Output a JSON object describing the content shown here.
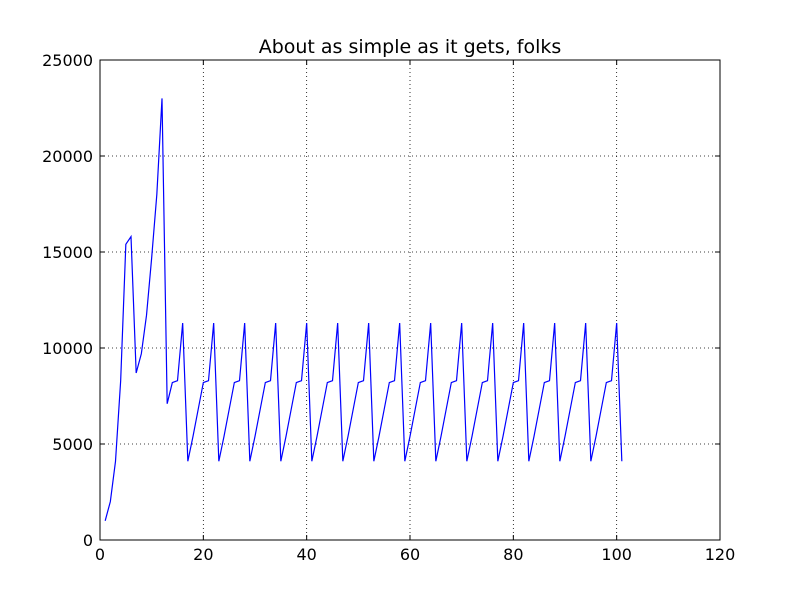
{
  "chart_data": {
    "type": "line",
    "title": "About as simple as it gets, folks",
    "xlabel": "",
    "ylabel": "",
    "xlim": [
      0,
      120
    ],
    "ylim": [
      0,
      25000
    ],
    "xticks": [
      0,
      20,
      40,
      60,
      80,
      100,
      120
    ],
    "yticks": [
      0,
      5000,
      10000,
      15000,
      20000,
      25000
    ],
    "grid": true,
    "grid_style": "dotted",
    "legend": "none",
    "series": [
      {
        "color": "#0000ff",
        "x": [
          1,
          2,
          3,
          4,
          5,
          6,
          7,
          8,
          9,
          10,
          11,
          12,
          13,
          14,
          15,
          16,
          17,
          18,
          19,
          20,
          21,
          22,
          23,
          24,
          25,
          26,
          27,
          28,
          29,
          30,
          31,
          32,
          33,
          34,
          35,
          36,
          37,
          38,
          39,
          40,
          41,
          42,
          43,
          44,
          45,
          46,
          47,
          48,
          49,
          50,
          51,
          52,
          53,
          54,
          55,
          56,
          57,
          58,
          59,
          60,
          61,
          62,
          63,
          64,
          65,
          66,
          67,
          68,
          69,
          70,
          71,
          72,
          73,
          74,
          75,
          76,
          77,
          78,
          79,
          80,
          81,
          82,
          83,
          84,
          85,
          86,
          87,
          88,
          89,
          90,
          91,
          92,
          93,
          94,
          95,
          96,
          97,
          98,
          99,
          100,
          101
        ],
        "y": [
          1000,
          2000,
          4100,
          8300,
          15400,
          15800,
          8700,
          9700,
          11700,
          14700,
          18000,
          23000,
          7100,
          8200,
          8300,
          11300,
          4100,
          5400,
          6800,
          8200,
          8300,
          11300,
          4100,
          5400,
          6800,
          8200,
          8300,
          11300,
          4100,
          5400,
          6800,
          8200,
          8300,
          11300,
          4100,
          5400,
          6800,
          8200,
          8300,
          11300,
          4100,
          5400,
          6800,
          8200,
          8300,
          11300,
          4100,
          5400,
          6800,
          8200,
          8300,
          11300,
          4100,
          5400,
          6800,
          8200,
          8300,
          11300,
          4100,
          5400,
          6800,
          8200,
          8300,
          11300,
          4100,
          5400,
          6800,
          8200,
          8300,
          11300,
          4100,
          5400,
          6800,
          8200,
          8300,
          11300,
          4100,
          5400,
          6800,
          8200,
          8300,
          11300,
          4100,
          5400,
          6800,
          8200,
          8300,
          11300,
          4100,
          5400,
          6800,
          8200,
          8300,
          11300,
          4100,
          5400,
          6800,
          8200,
          8300,
          11300,
          4100
        ]
      }
    ]
  }
}
